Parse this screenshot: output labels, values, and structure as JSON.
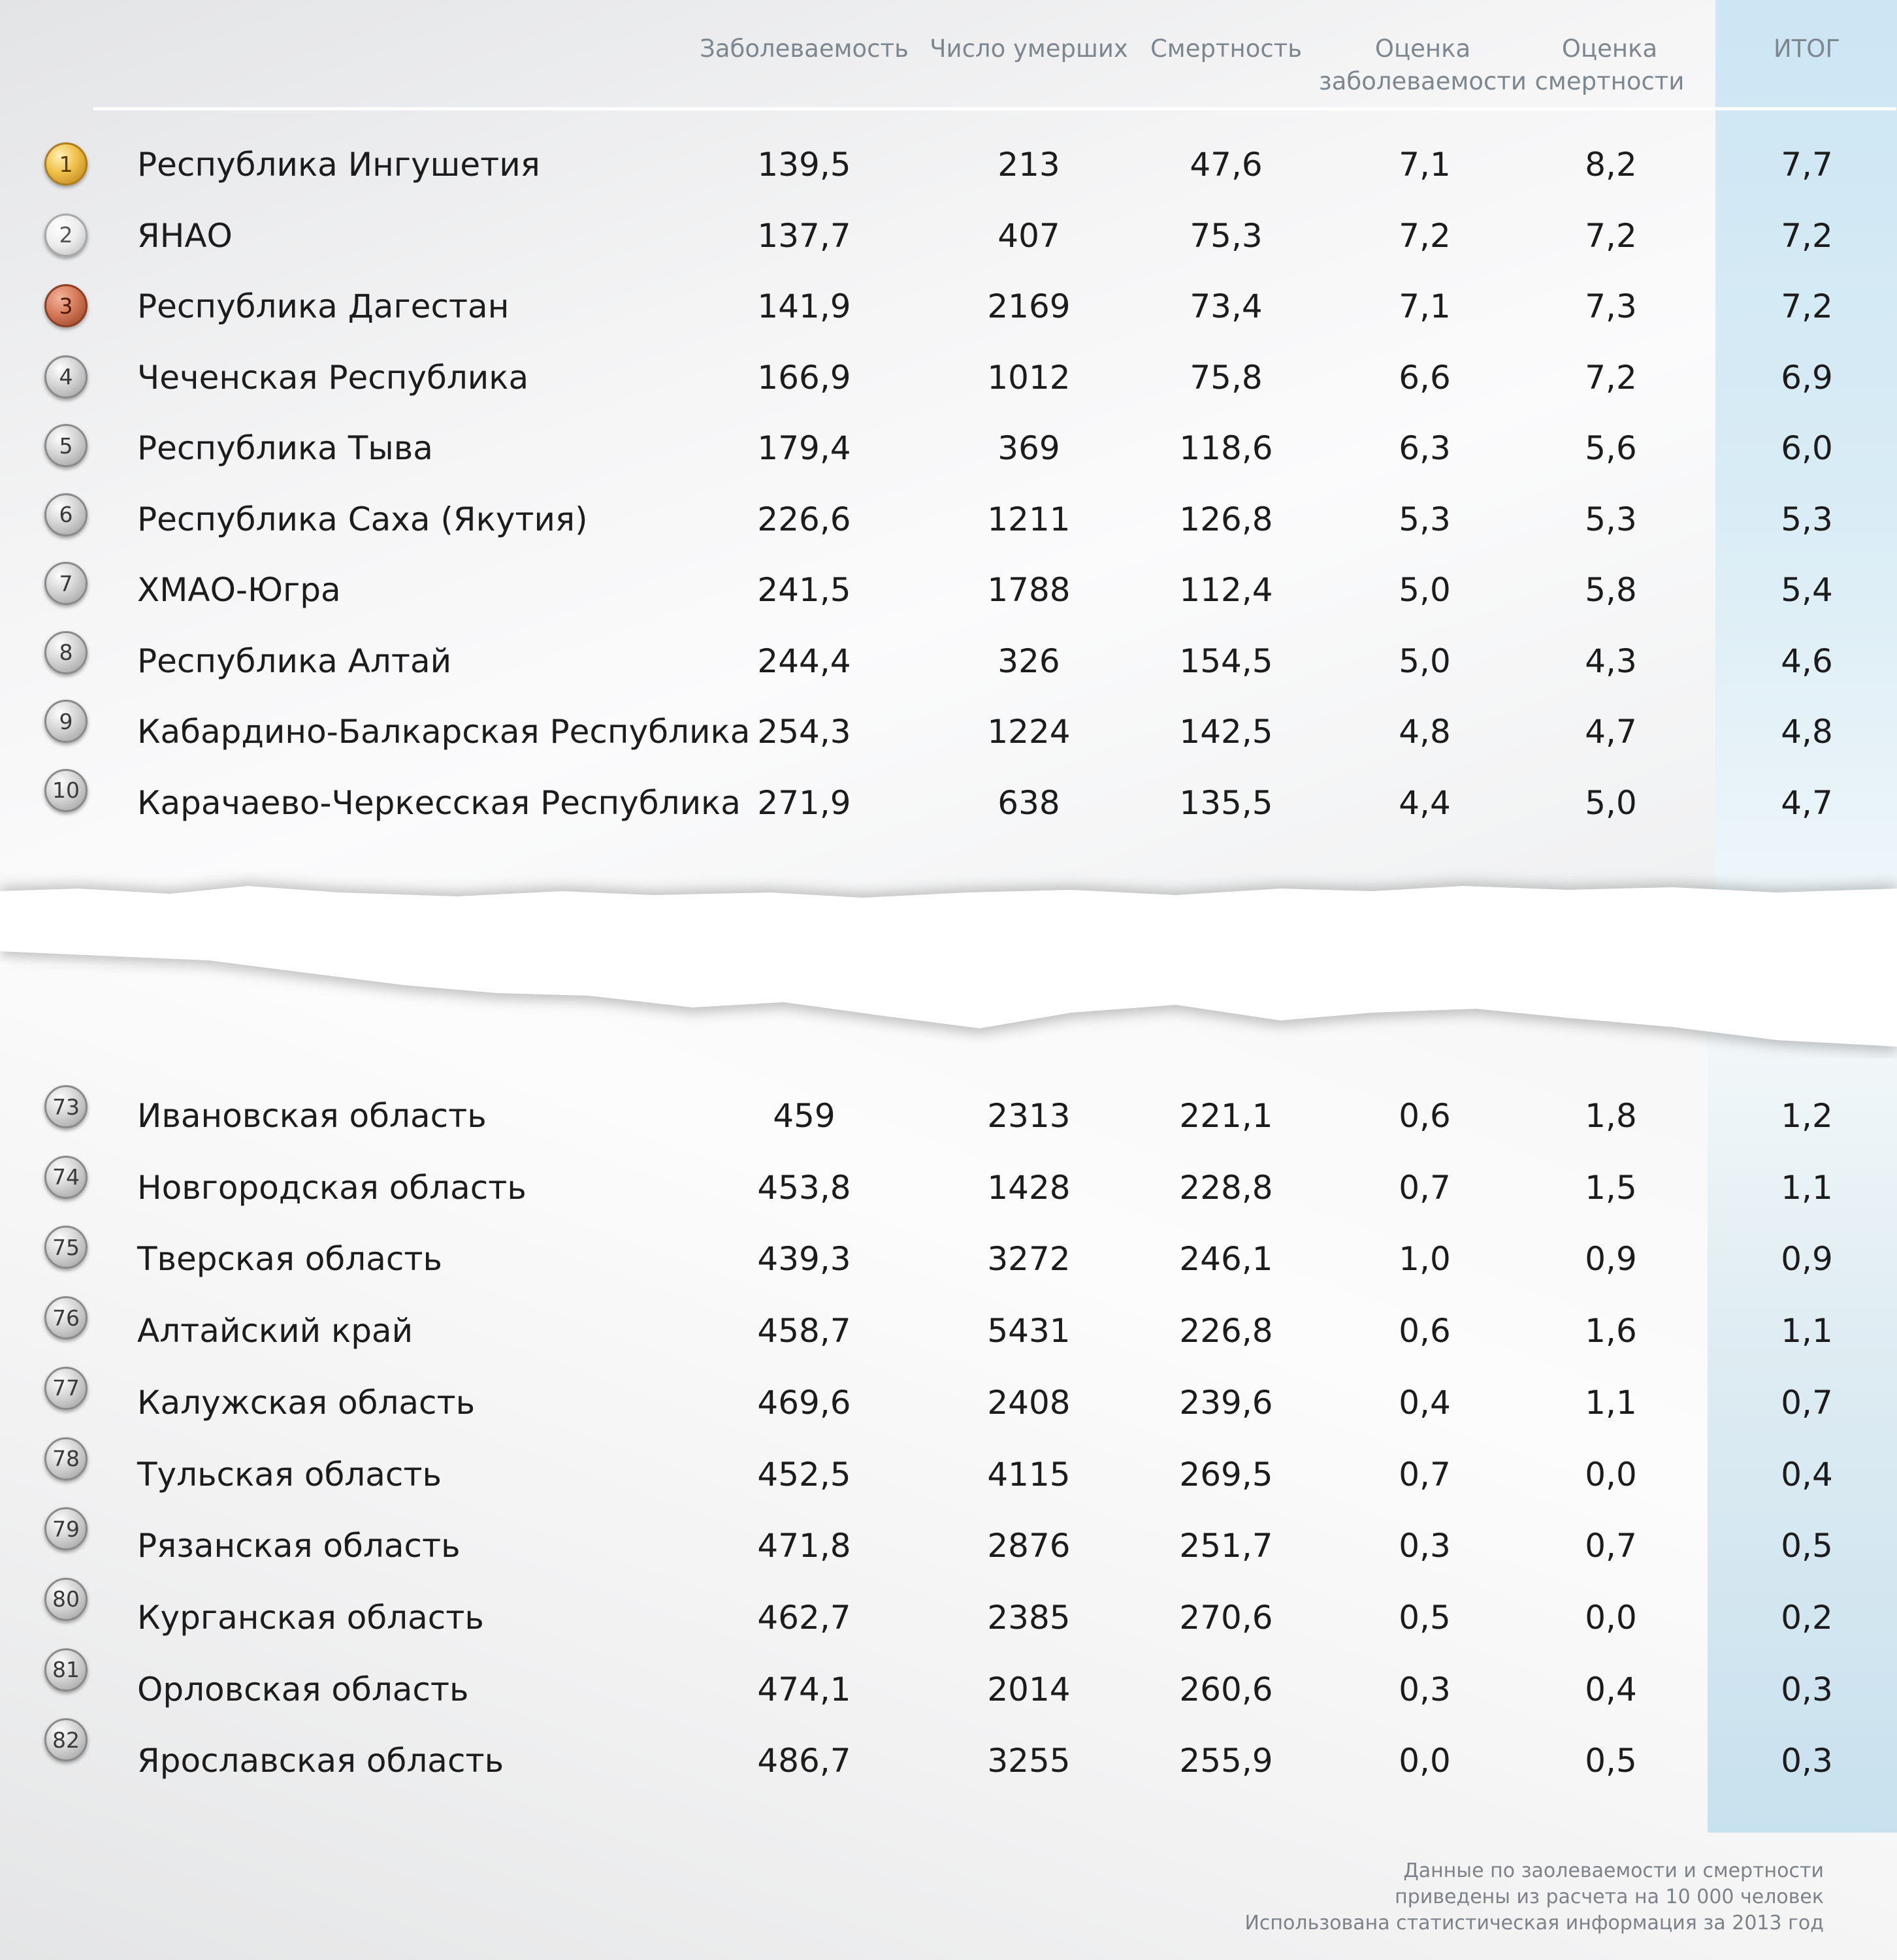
{
  "chart_data": {
    "type": "table",
    "columns": [
      "Заболеваемость",
      "Число умерших",
      "Смертность",
      "Оценка заболеваемости",
      "Оценка смертности",
      "ИТОГ"
    ],
    "top_rows": [
      {
        "rank": "1",
        "region": "Республика Ингушетия",
        "values": [
          "139,5",
          "213",
          "47,6",
          "7,1",
          "8,2",
          "7,7"
        ]
      },
      {
        "rank": "2",
        "region": "ЯНАО",
        "values": [
          "137,7",
          "407",
          "75,3",
          "7,2",
          "7,2",
          "7,2"
        ]
      },
      {
        "rank": "3",
        "region": "Республика Дагестан",
        "values": [
          "141,9",
          "2169",
          "73,4",
          "7,1",
          "7,3",
          "7,2"
        ]
      },
      {
        "rank": "4",
        "region": "Чеченская Республика",
        "values": [
          "166,9",
          "1012",
          "75,8",
          "6,6",
          "7,2",
          "6,9"
        ]
      },
      {
        "rank": "5",
        "region": "Республика Тыва",
        "values": [
          "179,4",
          "369",
          "118,6",
          "6,3",
          "5,6",
          "6,0"
        ]
      },
      {
        "rank": "6",
        "region": "Республика Саха (Якутия)",
        "values": [
          "226,6",
          "1211",
          "126,8",
          "5,3",
          "5,3",
          "5,3"
        ]
      },
      {
        "rank": "7",
        "region": "ХМАО-Югра",
        "values": [
          "241,5",
          "1788",
          "112,4",
          "5,0",
          "5,8",
          "5,4"
        ]
      },
      {
        "rank": "8",
        "region": "Республика Алтай",
        "values": [
          "244,4",
          "326",
          "154,5",
          "5,0",
          "4,3",
          "4,6"
        ]
      },
      {
        "rank": "9",
        "region": "Кабардино-Балкарская Республика",
        "values": [
          "254,3",
          "1224",
          "142,5",
          "4,8",
          "4,7",
          "4,8"
        ]
      },
      {
        "rank": "10",
        "region": "Карачаево-Черкесская Республика",
        "values": [
          "271,9",
          "638",
          "135,5",
          "4,4",
          "5,0",
          "4,7"
        ]
      }
    ],
    "bottom_ranks": [
      "73",
      "74",
      "75",
      "76",
      "77",
      "78",
      "79",
      "80",
      "81",
      "82"
    ],
    "bottom_rows": [
      {
        "region": "Ивановская область",
        "values": [
          "459",
          "2313",
          "221,1",
          "0,6",
          "1,8",
          "1,2"
        ]
      },
      {
        "region": "Новгородская область",
        "values": [
          "453,8",
          "1428",
          "228,8",
          "0,7",
          "1,5",
          "1,1"
        ]
      },
      {
        "region": "Тверская область",
        "values": [
          "439,3",
          "3272",
          "246,1",
          "1,0",
          "0,9",
          "0,9"
        ]
      },
      {
        "region": "Алтайский край",
        "values": [
          "458,7",
          "5431",
          "226,8",
          "0,6",
          "1,6",
          "1,1"
        ]
      },
      {
        "region": "Калужская область",
        "values": [
          "469,6",
          "2408",
          "239,6",
          "0,4",
          "1,1",
          "0,7"
        ]
      },
      {
        "region": "Тульская область",
        "values": [
          "452,5",
          "4115",
          "269,5",
          "0,7",
          "0,0",
          "0,4"
        ]
      },
      {
        "region": "Рязанская область",
        "values": [
          "471,8",
          "2876",
          "251,7",
          "0,3",
          "0,7",
          "0,5"
        ]
      },
      {
        "region": "Курганская область",
        "values": [
          "462,7",
          "2385",
          "270,6",
          "0,5",
          "0,0",
          "0,2"
        ]
      },
      {
        "region": "Орловская область",
        "values": [
          "474,1",
          "2014",
          "260,6",
          "0,3",
          "0,4",
          "0,3"
        ]
      },
      {
        "region": "Ярославская область",
        "values": [
          "486,7",
          "3255",
          "255,9",
          "0,0",
          "0,5",
          "0,3"
        ]
      }
    ],
    "highlight_column": "ИТОГ"
  },
  "header": {
    "incidence": "Заболеваемость",
    "deaths": "Число умерших",
    "mortality": "Смертность",
    "incidence_score_1": "Оценка",
    "incidence_score_2": "заболеваемости",
    "mortality_score_1": "Оценка",
    "mortality_score_2": "смертности",
    "total": "ИТОГ"
  },
  "footnote": {
    "line1": "Данные по заолеваемости и смертности",
    "line2": "приведены из расчета на 10 000 человек",
    "line3": "Использована статистическая информация за 2013 год"
  },
  "colors": {
    "itog_column": "#cfe6f2",
    "header_text": "#7d8790",
    "gold": "#e9b53a",
    "silver": "#d9d9d9",
    "bronze": "#c96a48",
    "plain_medal": "#b5b5b5"
  }
}
